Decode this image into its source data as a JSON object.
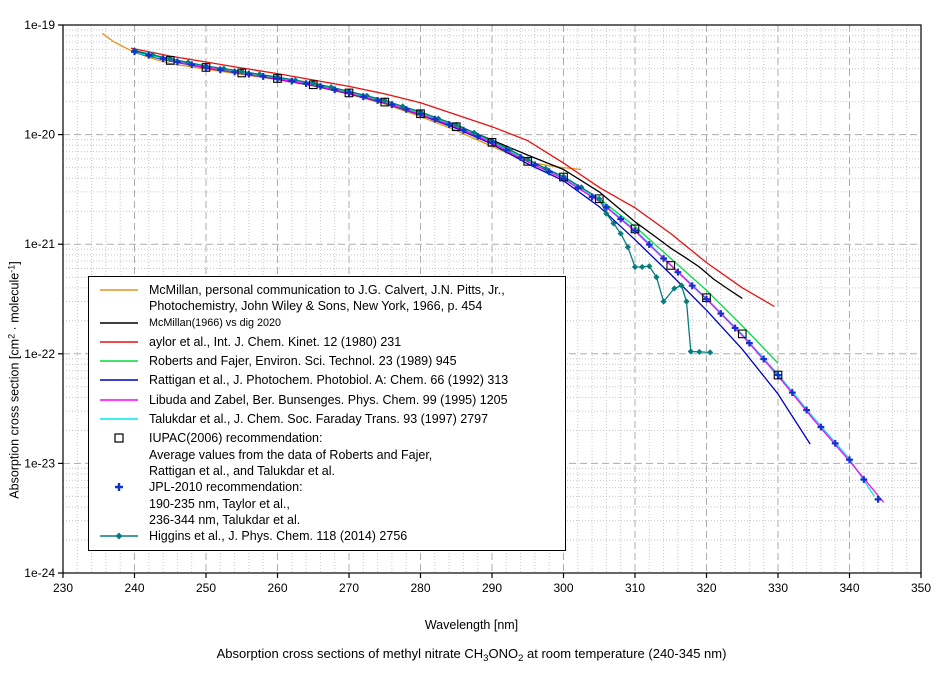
{
  "figure": {
    "title": {
      "pre": "Absorption cross sections of methyl nitrate CH",
      "sub_a": "3",
      "mid": "ONO",
      "sub_b": "2",
      "post": " at room temperature (240-345 nm)"
    },
    "x_axis": {
      "label": "Wavelength [nm]",
      "tick_labels": [
        "230",
        "240",
        "250",
        "260",
        "270",
        "280",
        "290",
        "300",
        "310",
        "320",
        "330",
        "340",
        "350"
      ],
      "range_nm": [
        230,
        350
      ],
      "minor_step_nm": 2,
      "major_step_nm": 10
    },
    "y_axis": {
      "label_pre": "Absorption cross section [cm",
      "label_sup_a": "2",
      "label_mid": " · molecule",
      "label_sup_b": "-1",
      "label_post": "]",
      "tick_labels": [
        "1e-19",
        "1e-20",
        "1e-21",
        "1e-22",
        "1e-23",
        "1e-24"
      ],
      "range_exp": [
        -24,
        -19
      ]
    },
    "grid": {
      "minor_color": "#C6C6C6",
      "major_color": "#ADADAD"
    }
  },
  "chart_data": {
    "type": "line",
    "x_unit": "nm",
    "y_unit": "cm2/molecule",
    "x_range": [
      230,
      350
    ],
    "y_range": [
      1e-24,
      1e-19
    ],
    "grid": true,
    "legend_position": "middle-left",
    "series": [
      {
        "id": "mcmillan",
        "label": "McMillan, personal communication to J.G. Calvert (Photochemistry, 1966, p. 454)",
        "color": "#E8951E",
        "draw": "line",
        "x": [
          235.5,
          237,
          238.5,
          240,
          242.5,
          245,
          250,
          255,
          260,
          265,
          270,
          275,
          280,
          285,
          290,
          293,
          296,
          298,
          300,
          302.5
        ],
        "y": [
          8.4e-20,
          7.1e-20,
          6.3e-20,
          5.65e-20,
          4.95e-20,
          4.45e-20,
          3.95e-20,
          3.55e-20,
          3.17e-20,
          2.78e-20,
          2.33e-20,
          1.9e-20,
          1.46e-20,
          1.09e-20,
          7.8e-21,
          6.4e-21,
          5.5e-21,
          5.2e-21,
          5e-21,
          4.8e-21
        ]
      },
      {
        "id": "taylor",
        "label": "aylor et al., Int. J. Chem. Kinet. 12 (1980) 231",
        "color": "#E81010",
        "draw": "line",
        "x": [
          239.5,
          245,
          250,
          255,
          260,
          265,
          270,
          275,
          280,
          285,
          290,
          295,
          300,
          305,
          310,
          315,
          320,
          325,
          329.5
        ],
        "y": [
          6.15e-20,
          5.2e-20,
          4.6e-20,
          4.05e-20,
          3.6e-20,
          3.15e-20,
          2.75e-20,
          2.35e-20,
          1.95e-20,
          1.52e-20,
          1.18e-20,
          8.8e-21,
          5.5e-21,
          3.3e-21,
          2.15e-21,
          1.25e-21,
          6.8e-22,
          4e-22,
          2.7e-22
        ]
      },
      {
        "id": "mcmillan-dig",
        "label": "McMillan(1966) vs dig 2020",
        "color": "#000000",
        "draw": "line",
        "x": [
          240,
          245,
          250,
          255,
          260,
          265,
          270,
          275,
          280,
          285,
          290,
          295,
          300,
          305,
          310,
          313,
          315,
          317,
          319,
          321,
          323,
          325
        ],
        "y": [
          5.75e-20,
          4.85e-20,
          4.18e-20,
          3.73e-20,
          3.32e-20,
          2.92e-20,
          2.46e-20,
          2.03e-20,
          1.6e-20,
          1.22e-20,
          8.9e-21,
          6.5e-21,
          4.8e-21,
          3e-21,
          1.6e-21,
          1.15e-21,
          9.2e-22,
          7.6e-22,
          6.2e-22,
          4.8e-22,
          3.9e-22,
          3.2e-22
        ]
      },
      {
        "id": "roberts-fajer",
        "label": "Roberts and Fajer, Environ. Sci. Technol. 23 (1989) 945",
        "color": "#00DC3C",
        "draw": "line",
        "x": [
          240,
          245,
          250,
          255,
          260,
          265,
          270,
          275,
          280,
          285,
          290,
          295,
          300,
          305,
          310,
          315,
          320,
          325,
          330
        ],
        "y": [
          5.65e-20,
          4.8e-20,
          4.15e-20,
          3.7e-20,
          3.28e-20,
          2.88e-20,
          2.43e-20,
          2e-20,
          1.57e-20,
          1.2e-20,
          8.7e-21,
          5.9e-21,
          4.1e-21,
          2.6e-21,
          1.45e-21,
          7.4e-22,
          3.8e-22,
          1.8e-22,
          8.2e-23
        ]
      },
      {
        "id": "rattigan",
        "label": "Rattigan et al., J. Photochem. Photobiol. A: Chem. 66 (1992) 313",
        "color": "#0000C8",
        "draw": "line",
        "x": [
          240,
          245,
          250,
          255,
          260,
          265,
          270,
          275,
          280,
          285,
          290,
          295,
          300,
          305,
          310,
          315,
          320,
          325,
          330,
          334.5
        ],
        "y": [
          5.6e-20,
          4.68e-20,
          4.05e-20,
          3.6e-20,
          3.2e-20,
          2.8e-20,
          2.36e-20,
          1.94e-20,
          1.51e-20,
          1.14e-20,
          8.2e-21,
          5.4e-21,
          3.8e-21,
          2.2e-21,
          1.1e-21,
          5.3e-22,
          2.5e-22,
          1.1e-22,
          4.3e-23,
          1.5e-23
        ]
      },
      {
        "id": "talukdar",
        "label": "Talukdar et al., J. Chem. Soc. Faraday Trans. 93 (1997) 2797",
        "color": "#00E8E8",
        "draw": "line",
        "x": [
          239.5,
          245,
          250,
          255,
          260,
          265,
          270,
          275,
          280,
          285,
          290,
          295,
          300,
          305,
          310,
          315,
          320,
          325,
          330,
          335,
          340,
          343.5
        ],
        "y": [
          5.72e-20,
          4.75e-20,
          4.1e-20,
          3.65e-20,
          3.25e-20,
          2.85e-20,
          2.4e-20,
          1.98e-20,
          1.55e-20,
          1.18e-20,
          8.5e-21,
          5.7e-21,
          4e-21,
          2.5e-21,
          1.35e-21,
          6.5e-22,
          3.2e-22,
          1.5e-22,
          6.5e-23,
          2.6e-23,
          1.1e-23,
          5e-24
        ]
      },
      {
        "id": "libuda-zabel",
        "label": "Libuda and Zabel, Ber. Bunsenges. Phys. Chem. 99 (1995) 1205",
        "color": "#FF00FF",
        "draw": "line",
        "x": [
          245,
          250,
          255,
          260,
          265,
          270,
          275,
          280,
          285,
          290,
          295,
          300,
          305,
          310,
          315,
          320,
          325,
          330,
          335,
          340,
          344.8
        ],
        "y": [
          4.72e-20,
          4.08e-20,
          3.62e-20,
          3.22e-20,
          2.83e-20,
          2.38e-20,
          1.96e-20,
          1.53e-20,
          1.17e-20,
          8.4e-21,
          5.65e-21,
          3.95e-21,
          2.45e-21,
          1.32e-21,
          6.4e-22,
          3.15e-22,
          1.47e-22,
          6.3e-23,
          2.5e-23,
          1.05e-23,
          4.4e-24
        ]
      },
      {
        "id": "higgins",
        "label": "Higgins et al., J. Phys. Chem. 118 (2014) 2756",
        "color": "#057D7D",
        "draw": "line-markers",
        "marker": "diamond",
        "x": [
          240,
          242.5,
          245,
          247.5,
          250,
          252.5,
          255,
          257.5,
          260,
          262.5,
          265,
          267.5,
          270,
          272.5,
          275,
          277.5,
          280,
          282.5,
          285,
          287.5,
          290,
          292.5,
          295,
          297.5,
          300,
          302.5,
          305,
          306,
          307,
          308,
          309,
          310,
          311,
          312,
          313,
          314,
          315.5,
          316.5,
          317.2,
          317.8,
          319,
          320.5
        ],
        "y": [
          5.85e-20,
          5.35e-20,
          4.92e-20,
          4.56e-20,
          4.23e-20,
          4e-20,
          3.77e-20,
          3.55e-20,
          3.35e-20,
          3.14e-20,
          2.95e-20,
          2.71e-20,
          2.48e-20,
          2.26e-20,
          2.05e-20,
          1.81e-20,
          1.61e-20,
          1.4e-20,
          1.23e-20,
          1.04e-20,
          8.8e-21,
          7.3e-21,
          5.95e-21,
          4.9e-21,
          4.15e-21,
          3.3e-21,
          2.6e-21,
          1.9e-21,
          1.55e-21,
          1.25e-21,
          9.4e-22,
          6.2e-22,
          6.2e-22,
          6.3e-22,
          5e-22,
          3e-22,
          3.95e-22,
          4.2e-22,
          3e-22,
          1.05e-22,
          1.04e-22,
          1.03e-22
        ]
      },
      {
        "id": "iupac",
        "label": "IUPAC(2006) recommendation",
        "color": "#000000",
        "draw": "markers-square",
        "x": [
          245,
          250,
          255,
          260,
          265,
          270,
          275,
          280,
          285,
          290,
          295,
          300,
          305,
          310,
          315,
          320,
          325,
          330
        ],
        "y": [
          4.75e-20,
          4.1e-20,
          3.65e-20,
          3.25e-20,
          2.85e-20,
          2.4e-20,
          1.98e-20,
          1.55e-20,
          1.18e-20,
          8.5e-21,
          5.7e-21,
          4.1e-21,
          2.6e-21,
          1.38e-21,
          6.4e-22,
          3.25e-22,
          1.52e-22,
          6.4e-23
        ]
      },
      {
        "id": "jpl2010",
        "label": "JPL-2010 recommendation",
        "color": "#1133CC",
        "draw": "markers-plus-interp",
        "marker_step_nm": 2,
        "x": [
          240,
          245,
          250,
          255,
          260,
          265,
          270,
          275,
          280,
          285,
          290,
          295,
          300,
          305,
          310,
          315,
          320,
          325,
          330,
          335,
          340,
          344
        ],
        "y": [
          5.7e-20,
          4.74e-20,
          4.09e-20,
          3.64e-20,
          3.24e-20,
          2.84e-20,
          2.4e-20,
          1.97e-20,
          1.54e-20,
          1.17e-20,
          8.5e-21,
          5.7e-21,
          3.95e-21,
          2.45e-21,
          1.33e-21,
          6.4e-22,
          3.15e-22,
          1.48e-22,
          6.4e-23,
          2.55e-23,
          1.08e-23,
          4.7e-24
        ]
      }
    ],
    "legend": {
      "entries": [
        {
          "marker": "line",
          "color": "#E8951E",
          "lines": [
            "McMillan, personal communication to J.G. Calvert, J.N. Pitts, Jr.,",
            "Photochemistry, John Wiley & Sons, New York, 1966, p. 454"
          ]
        },
        {
          "marker": "line",
          "color": "#000000",
          "small": true,
          "lines": [
            "McMillan(1966) vs dig 2020"
          ]
        },
        {
          "marker": "line",
          "color": "#E81010",
          "lines": [
            "aylor et al., Int. J. Chem. Kinet. 12 (1980) 231"
          ]
        },
        {
          "marker": "line",
          "color": "#00DC3C",
          "lines": [
            "Roberts and Fajer, Environ. Sci. Technol. 23 (1989) 945"
          ]
        },
        {
          "marker": "line",
          "color": "#0000C8",
          "lines": [
            "Rattigan et al., J. Photochem. Photobiol. A: Chem. 66 (1992) 313"
          ]
        },
        {
          "marker": "line",
          "color": "#FF00FF",
          "lines": [
            "Libuda and Zabel, Ber. Bunsenges. Phys. Chem. 99 (1995) 1205"
          ]
        },
        {
          "marker": "line",
          "color": "#00E8E8",
          "lines": [
            "Talukdar et al., J. Chem. Soc. Faraday Trans. 93 (1997) 2797"
          ]
        },
        {
          "marker": "square",
          "color": "#000000",
          "lines": [
            "IUPAC(2006) recommendation:",
            "Average values from the data of Roberts and Fajer,",
            "Rattigan et al., and Talukdar et al."
          ]
        },
        {
          "marker": "plus",
          "color": "#1133CC",
          "lines": [
            "JPL-2010 recommendation:",
            "190-235 nm, Taylor et al.,",
            "236-344 nm, Talukdar et al."
          ]
        },
        {
          "marker": "line-diamond",
          "color": "#057D7D",
          "lines": [
            "Higgins et al., J. Phys. Chem. 118 (2014) 2756"
          ]
        }
      ]
    }
  }
}
